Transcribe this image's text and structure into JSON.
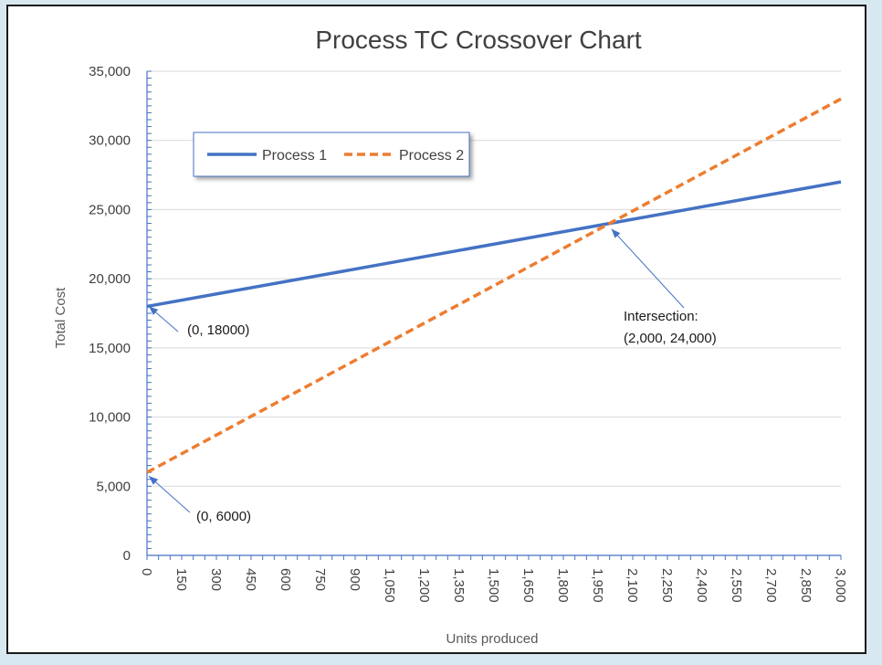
{
  "chart_data": {
    "type": "line",
    "title": "Process TC Crossover Chart",
    "xlabel": "Units produced",
    "ylabel": "Total Cost",
    "xlim": [
      0,
      3000
    ],
    "ylim": [
      0,
      35000
    ],
    "x_ticks": [
      0,
      150,
      300,
      450,
      600,
      750,
      900,
      1050,
      1200,
      1350,
      1500,
      1650,
      1800,
      1950,
      2100,
      2250,
      2400,
      2550,
      2700,
      2850,
      3000
    ],
    "x_tick_labels": [
      "0",
      "150",
      "300",
      "450",
      "600",
      "750",
      "900",
      "1,050",
      "1,200",
      "1,350",
      "1,500",
      "1,650",
      "1,800",
      "1,950",
      "2,100",
      "2,250",
      "2,400",
      "2,550",
      "2,700",
      "2,850",
      "3,000"
    ],
    "y_ticks": [
      0,
      5000,
      10000,
      15000,
      20000,
      25000,
      30000,
      35000
    ],
    "y_tick_labels": [
      "0",
      "5,000",
      "10,000",
      "15,000",
      "20,000",
      "25,000",
      "30,000",
      "35,000"
    ],
    "grid": "horizontal",
    "legend_position": "top-left",
    "series": [
      {
        "name": "Process 1",
        "color": "#4472c4",
        "style": "solid",
        "x": [
          0,
          3000
        ],
        "y": [
          18000,
          27000
        ]
      },
      {
        "name": "Process 2",
        "color": "#ed7d31",
        "style": "dashed",
        "x": [
          0,
          3000
        ],
        "y": [
          6000,
          33000
        ]
      }
    ],
    "annotations": [
      {
        "text": "(0, 18000)",
        "x": 0,
        "y": 18000
      },
      {
        "text": "(0, 6000)",
        "x": 0,
        "y": 6000
      },
      {
        "lines": [
          "Intersection:",
          "(2,000, 24,000)"
        ],
        "x": 2000,
        "y": 24000
      }
    ]
  }
}
